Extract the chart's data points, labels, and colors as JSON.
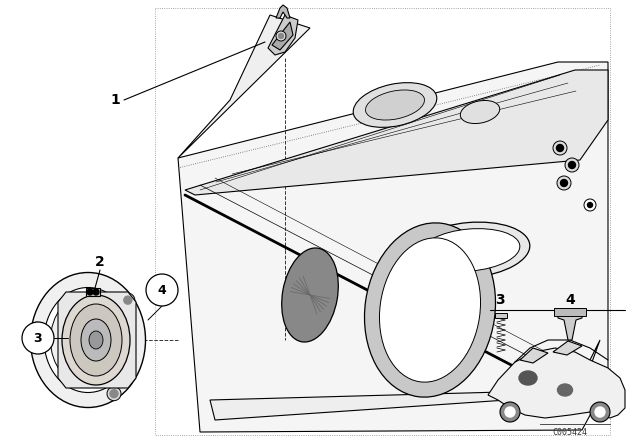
{
  "bg_color": "#ffffff",
  "fig_width": 6.4,
  "fig_height": 4.48,
  "dpi": 100,
  "watermark": "C005424",
  "line_color": "#000000",
  "line_width": 0.8,
  "dot_color": "#444444"
}
